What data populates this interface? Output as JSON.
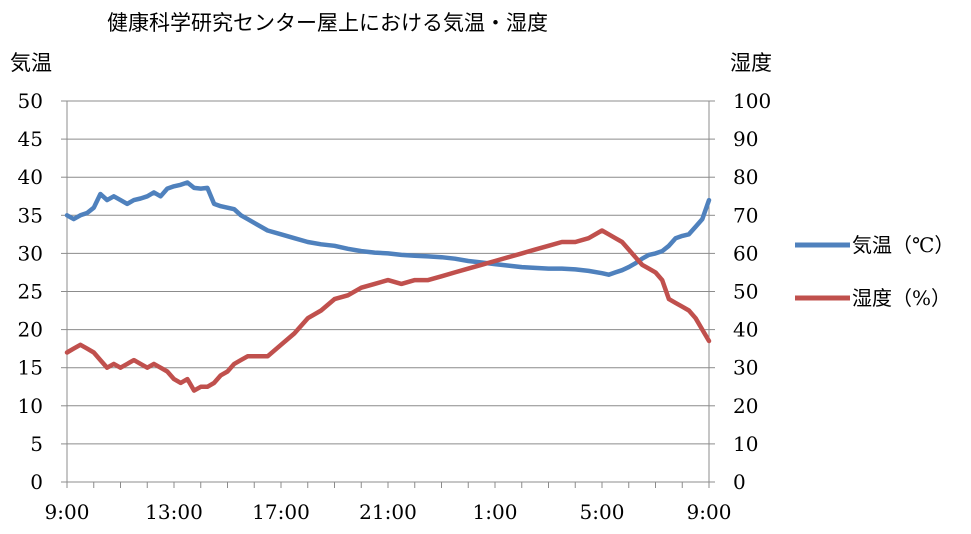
{
  "chart_data": {
    "type": "line",
    "title": "健康科学研究センター屋上における気温・湿度",
    "ylabel": "気温",
    "y2label": "湿度",
    "ylim": [
      0,
      50
    ],
    "y2lim": [
      0,
      100
    ],
    "yticks": [
      "0",
      "5",
      "10",
      "15",
      "20",
      "25",
      "30",
      "35",
      "40",
      "45",
      "50"
    ],
    "y2ticks": [
      "0",
      "10",
      "20",
      "30",
      "40",
      "50",
      "60",
      "70",
      "80",
      "90",
      "100"
    ],
    "xtick_labels": [
      "9:00",
      "13:00",
      "17:00",
      "21:00",
      "1:00",
      "5:00",
      "9:00"
    ],
    "x_label_hours": [
      0,
      4,
      8,
      12,
      16,
      20,
      24
    ],
    "grid": true,
    "legend_position": "right",
    "series": [
      {
        "name": "気温（℃）",
        "axis": "left",
        "color": "#4f81bd",
        "x": [
          0,
          0.25,
          0.5,
          0.75,
          1,
          1.25,
          1.5,
          1.75,
          2,
          2.25,
          2.5,
          2.75,
          3,
          3.25,
          3.5,
          3.75,
          4,
          4.25,
          4.5,
          4.75,
          5,
          5.25,
          5.5,
          5.75,
          6,
          6.25,
          6.5,
          6.75,
          7,
          7.5,
          8,
          8.5,
          9,
          9.5,
          10,
          10.5,
          11,
          11.5,
          12,
          12.5,
          13,
          13.5,
          14,
          14.5,
          15,
          15.5,
          16,
          16.5,
          17,
          17.5,
          18,
          18.5,
          19,
          19.5,
          20,
          20.25,
          20.5,
          20.75,
          21,
          21.25,
          21.5,
          21.75,
          22,
          22.25,
          22.5,
          22.75,
          23,
          23.25,
          23.5,
          23.75,
          24
        ],
        "values": [
          35,
          34.5,
          35,
          35.3,
          36,
          37.8,
          37,
          37.5,
          37,
          36.5,
          37,
          37.2,
          37.5,
          38,
          37.5,
          38.5,
          38.8,
          39,
          39.3,
          38.6,
          38.5,
          38.6,
          36.5,
          36.2,
          36,
          35.8,
          35,
          34.5,
          34,
          33,
          32.5,
          32,
          31.5,
          31.2,
          31,
          30.6,
          30.3,
          30.1,
          30,
          29.8,
          29.7,
          29.6,
          29.5,
          29.3,
          29,
          28.8,
          28.6,
          28.4,
          28.2,
          28.1,
          28,
          28,
          27.9,
          27.7,
          27.4,
          27.2,
          27.5,
          27.8,
          28.2,
          28.7,
          29.3,
          29.8,
          30,
          30.3,
          31,
          32,
          32.3,
          32.5,
          33.5,
          34.5,
          37
        ]
      },
      {
        "name": "湿度（%）",
        "axis": "right",
        "color": "#c0504d",
        "x": [
          0,
          0.25,
          0.5,
          0.75,
          1,
          1.25,
          1.5,
          1.75,
          2,
          2.25,
          2.5,
          2.75,
          3,
          3.25,
          3.5,
          3.75,
          4,
          4.25,
          4.5,
          4.75,
          5,
          5.25,
          5.5,
          5.75,
          6,
          6.25,
          6.5,
          6.75,
          7,
          7.5,
          8,
          8.5,
          9,
          9.5,
          10,
          10.5,
          11,
          11.5,
          12,
          12.5,
          13,
          13.5,
          14,
          14.5,
          15,
          15.5,
          16,
          16.5,
          17,
          17.5,
          18,
          18.5,
          19,
          19.5,
          20,
          20.25,
          20.5,
          20.75,
          21,
          21.25,
          21.5,
          21.75,
          22,
          22.25,
          22.5,
          22.75,
          23,
          23.25,
          23.5,
          23.75,
          24
        ],
        "values": [
          34,
          35,
          36,
          35,
          34,
          32,
          30,
          31,
          30,
          31,
          32,
          31,
          30,
          31,
          30,
          29,
          27,
          26,
          27,
          24,
          25,
          25,
          26,
          28,
          29,
          31,
          32,
          33,
          33,
          33,
          36,
          39,
          43,
          45,
          48,
          49,
          51,
          52,
          53,
          52,
          53,
          53,
          54,
          55,
          56,
          57,
          58,
          59,
          60,
          61,
          62,
          63,
          63,
          64,
          66,
          65,
          64,
          63,
          61,
          59,
          57,
          56,
          55,
          53,
          48,
          47,
          46,
          45,
          43,
          40,
          37
        ]
      }
    ]
  }
}
